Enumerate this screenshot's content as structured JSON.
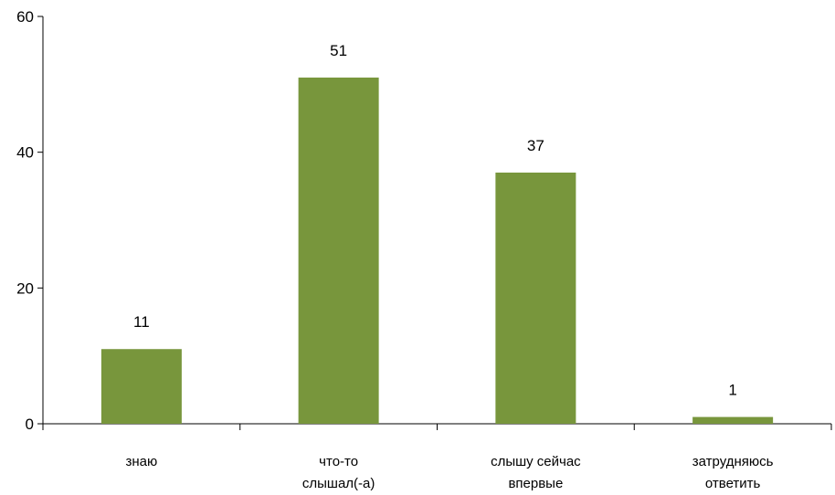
{
  "chart_data": {
    "type": "bar",
    "title": "",
    "xlabel": "",
    "ylabel": "",
    "categories": [
      [
        "знаю"
      ],
      [
        "что-то",
        "слышал(-а)"
      ],
      [
        "слышу сейчас",
        "впервые"
      ],
      [
        "затрудняюсь",
        "ответить"
      ]
    ],
    "values": [
      11,
      51,
      37,
      1
    ],
    "ylim": [
      0,
      60
    ],
    "yticks": [
      0,
      20,
      40,
      60
    ],
    "grid": false,
    "legend": "none",
    "colors": {
      "bar": "#78963c",
      "axis": "#000000"
    }
  }
}
